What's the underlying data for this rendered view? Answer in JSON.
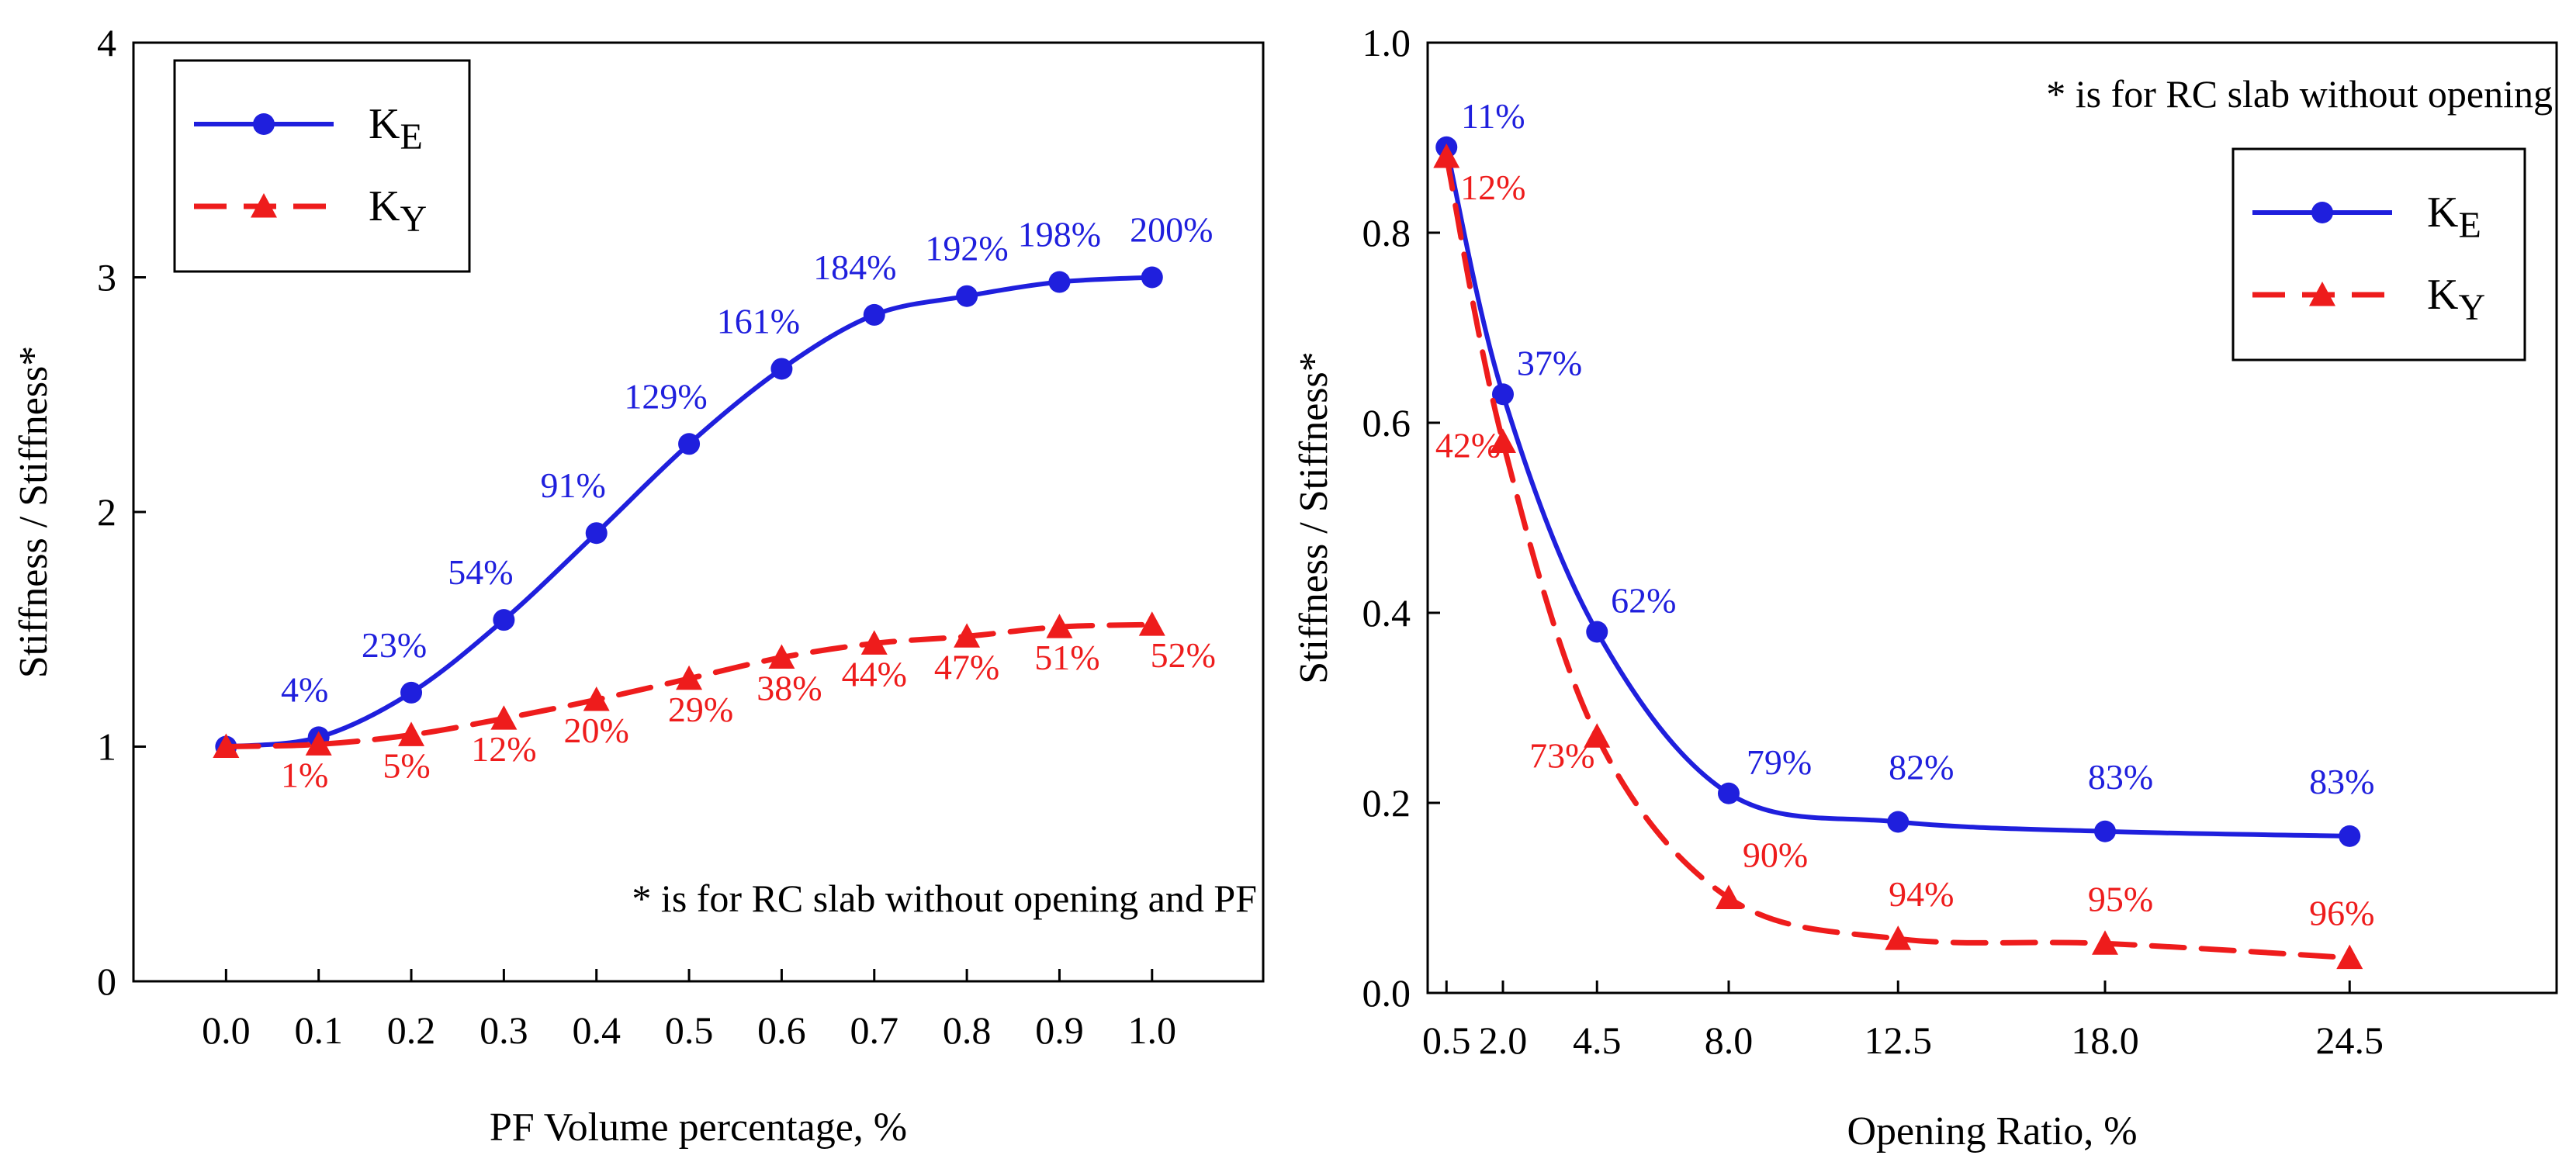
{
  "colors": {
    "series_e": "#1f1fdd",
    "series_y": "#ee1c1c",
    "axis": "#000000"
  },
  "chart_data": [
    {
      "type": "line",
      "xlabel": "PF Volume percentage, %",
      "ylabel": "Stiffness / Stiffness*",
      "xlim": [
        -0.1,
        1.12
      ],
      "ylim": [
        0,
        4
      ],
      "x_ticks": [
        0.0,
        0.1,
        0.2,
        0.3,
        0.4,
        0.5,
        0.6,
        0.7,
        0.8,
        0.9,
        1.0
      ],
      "x_tick_labels": [
        "0.0",
        "0.1",
        "0.2",
        "0.3",
        "0.4",
        "0.5",
        "0.6",
        "0.7",
        "0.8",
        "0.9",
        "1.0"
      ],
      "y_ticks": [
        0,
        1,
        2,
        3,
        4
      ],
      "y_tick_labels": [
        "0",
        "1",
        "2",
        "3",
        "4"
      ],
      "x": [
        0.0,
        0.1,
        0.2,
        0.3,
        0.4,
        0.5,
        0.6,
        0.7,
        0.8,
        0.9,
        1.0
      ],
      "legend_position": "top-left",
      "annotation": "* is for RC slab without opening and PF",
      "series": [
        {
          "key": "E",
          "name_base": "K",
          "name_sub": "E",
          "marker": "circle",
          "line": "solid",
          "values": [
            1.0,
            1.04,
            1.23,
            1.54,
            1.91,
            2.29,
            2.61,
            2.84,
            2.92,
            2.98,
            3.0
          ],
          "labels": [
            "",
            "4%",
            "23%",
            "54%",
            "91%",
            "129%",
            "161%",
            "184%",
            "192%",
            "198%",
            "200%"
          ]
        },
        {
          "key": "Y",
          "name_base": "K",
          "name_sub": "Y",
          "marker": "triangle",
          "line": "dashed",
          "values": [
            1.0,
            1.01,
            1.05,
            1.12,
            1.2,
            1.29,
            1.38,
            1.44,
            1.47,
            1.51,
            1.52
          ],
          "labels": [
            "",
            "1%",
            "5%",
            "12%",
            "20%",
            "29%",
            "38%",
            "44%",
            "47%",
            "51%",
            "52%"
          ]
        }
      ]
    },
    {
      "type": "line",
      "xlabel": "Opening Ratio, %",
      "ylabel": "Stiffness / Stiffness*",
      "xlim": [
        0,
        30
      ],
      "ylim": [
        0,
        1.0
      ],
      "x_ticks": [
        0.5,
        2.0,
        4.5,
        8.0,
        12.5,
        18.0,
        24.5
      ],
      "x_tick_labels": [
        "0.5",
        "2.0",
        "4.5",
        "8.0",
        "12.5",
        "18.0",
        "24.5"
      ],
      "y_ticks": [
        0,
        0.2,
        0.4,
        0.6,
        0.8,
        1.0
      ],
      "y_tick_labels": [
        "0.0",
        "0.2",
        "0.4",
        "0.6",
        "0.8",
        "1.0"
      ],
      "x": [
        0.5,
        2.0,
        4.5,
        8.0,
        12.5,
        18.0,
        24.5
      ],
      "legend_position": "top-right",
      "annotation": "* is for RC slab without opening",
      "series": [
        {
          "key": "E",
          "name_base": "K",
          "name_sub": "E",
          "marker": "circle",
          "line": "solid",
          "values": [
            0.89,
            0.63,
            0.38,
            0.21,
            0.18,
            0.17,
            0.165
          ],
          "labels": [
            "11%",
            "37%",
            "62%",
            "79%",
            "82%",
            "83%",
            "83%"
          ]
        },
        {
          "key": "Y",
          "name_base": "K",
          "name_sub": "Y",
          "marker": "triangle",
          "line": "dashed",
          "values": [
            0.88,
            0.58,
            0.27,
            0.1,
            0.057,
            0.052,
            0.037
          ],
          "labels": [
            "12%",
            "42%",
            "73%",
            "90%",
            "94%",
            "95%",
            "96%"
          ]
        }
      ]
    }
  ]
}
